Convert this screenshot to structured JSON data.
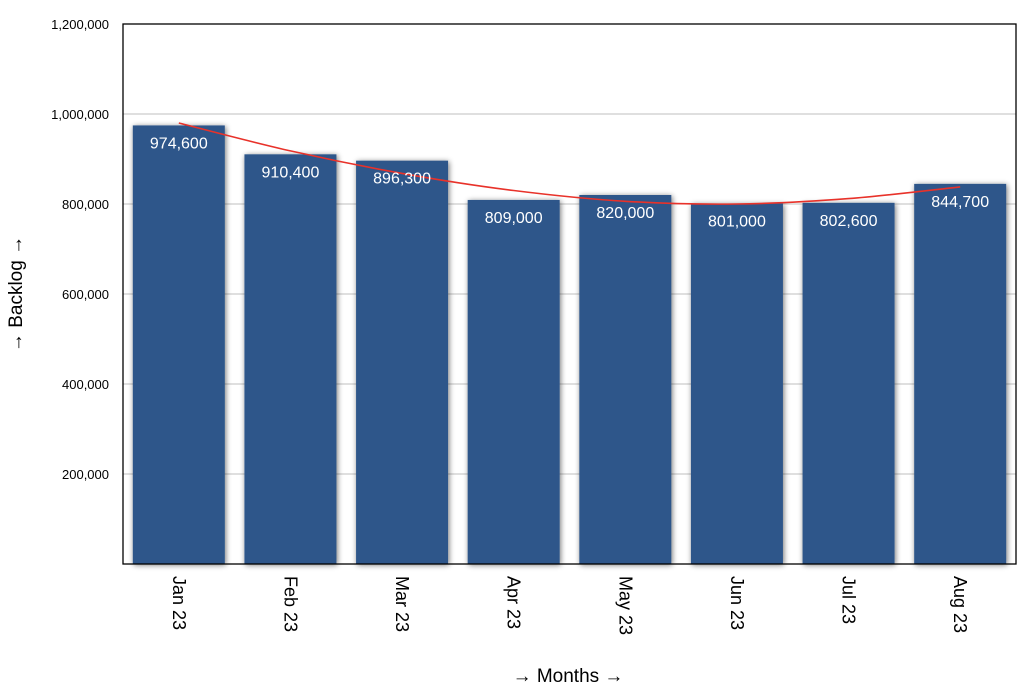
{
  "chart_data": {
    "type": "bar",
    "title": "",
    "categories": [
      "Jan 23",
      "Feb 23",
      "Mar 23",
      "Apr 23",
      "May 23",
      "Jun 23",
      "Jul 23",
      "Aug 23"
    ],
    "values": [
      974600,
      910400,
      896300,
      809000,
      820000,
      801000,
      802600,
      844700
    ],
    "value_labels": [
      "974,600",
      "910,400",
      "896,300",
      "809,000",
      "820,000",
      "801,000",
      "802,600",
      "844,700"
    ],
    "xlabel": "→ Months →",
    "ylabel": "→ Backlog →",
    "ylim": [
      0,
      1200000
    ],
    "yticks": [
      200000,
      400000,
      600000,
      800000,
      1000000,
      1200000
    ],
    "ytick_labels": [
      "200,000",
      "400,000",
      "600,000",
      "800,000",
      "1,000,000",
      "1,200,000"
    ],
    "grid": true,
    "trendline": {
      "type": "polynomial",
      "values": [
        980000,
        918000,
        868000,
        830000,
        806000,
        800000,
        812000,
        838000
      ]
    },
    "colors": {
      "bar": "#2e578a",
      "trendline": "#e8322a",
      "grid": "#bfbfbf",
      "axis": "#000000",
      "value_label": "#ffffff"
    }
  }
}
